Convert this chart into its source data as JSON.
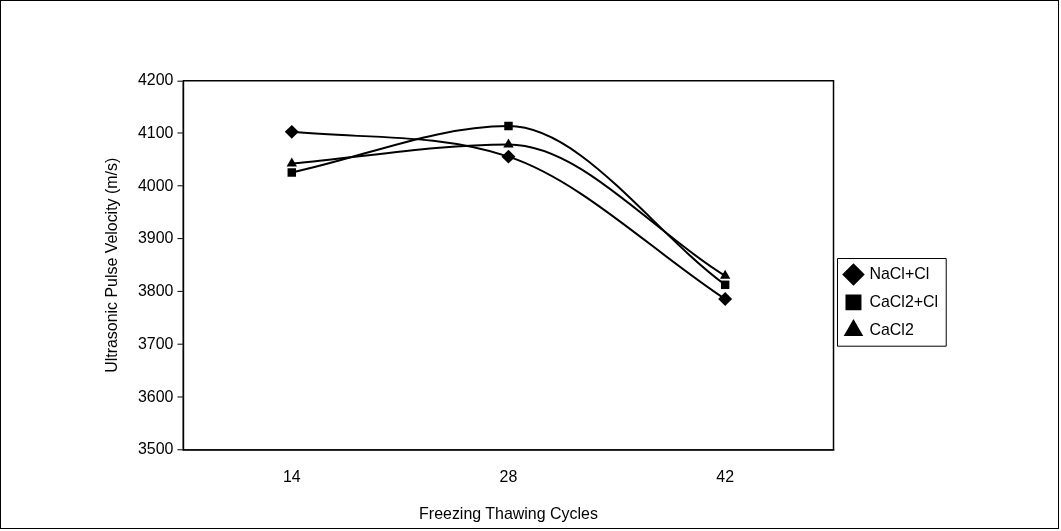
{
  "chart_data": {
    "type": "line",
    "xlabel": "Freezing Thawing Cycles",
    "ylabel": "Ultrasonic Pulse Velocity (m/s)",
    "categories": [
      "14",
      "28",
      "42"
    ],
    "series": [
      {
        "name": "NaCl+Cl",
        "color": "#000000",
        "marker": "diamond",
        "values": [
          4103,
          4056,
          3786
        ]
      },
      {
        "name": "CaCl2+Cl",
        "color": "#000000",
        "marker": "square",
        "values": [
          4026,
          4114,
          3813
        ]
      },
      {
        "name": "CaCl2",
        "color": "#000000",
        "marker": "triangle",
        "values": [
          4043,
          4079,
          3830
        ]
      }
    ],
    "ylim": [
      3500,
      4200
    ],
    "yticks": [
      3500,
      3600,
      3700,
      3800,
      3900,
      4000,
      4100,
      4200
    ],
    "grid": false,
    "legend": "right",
    "line_style": "solid"
  }
}
